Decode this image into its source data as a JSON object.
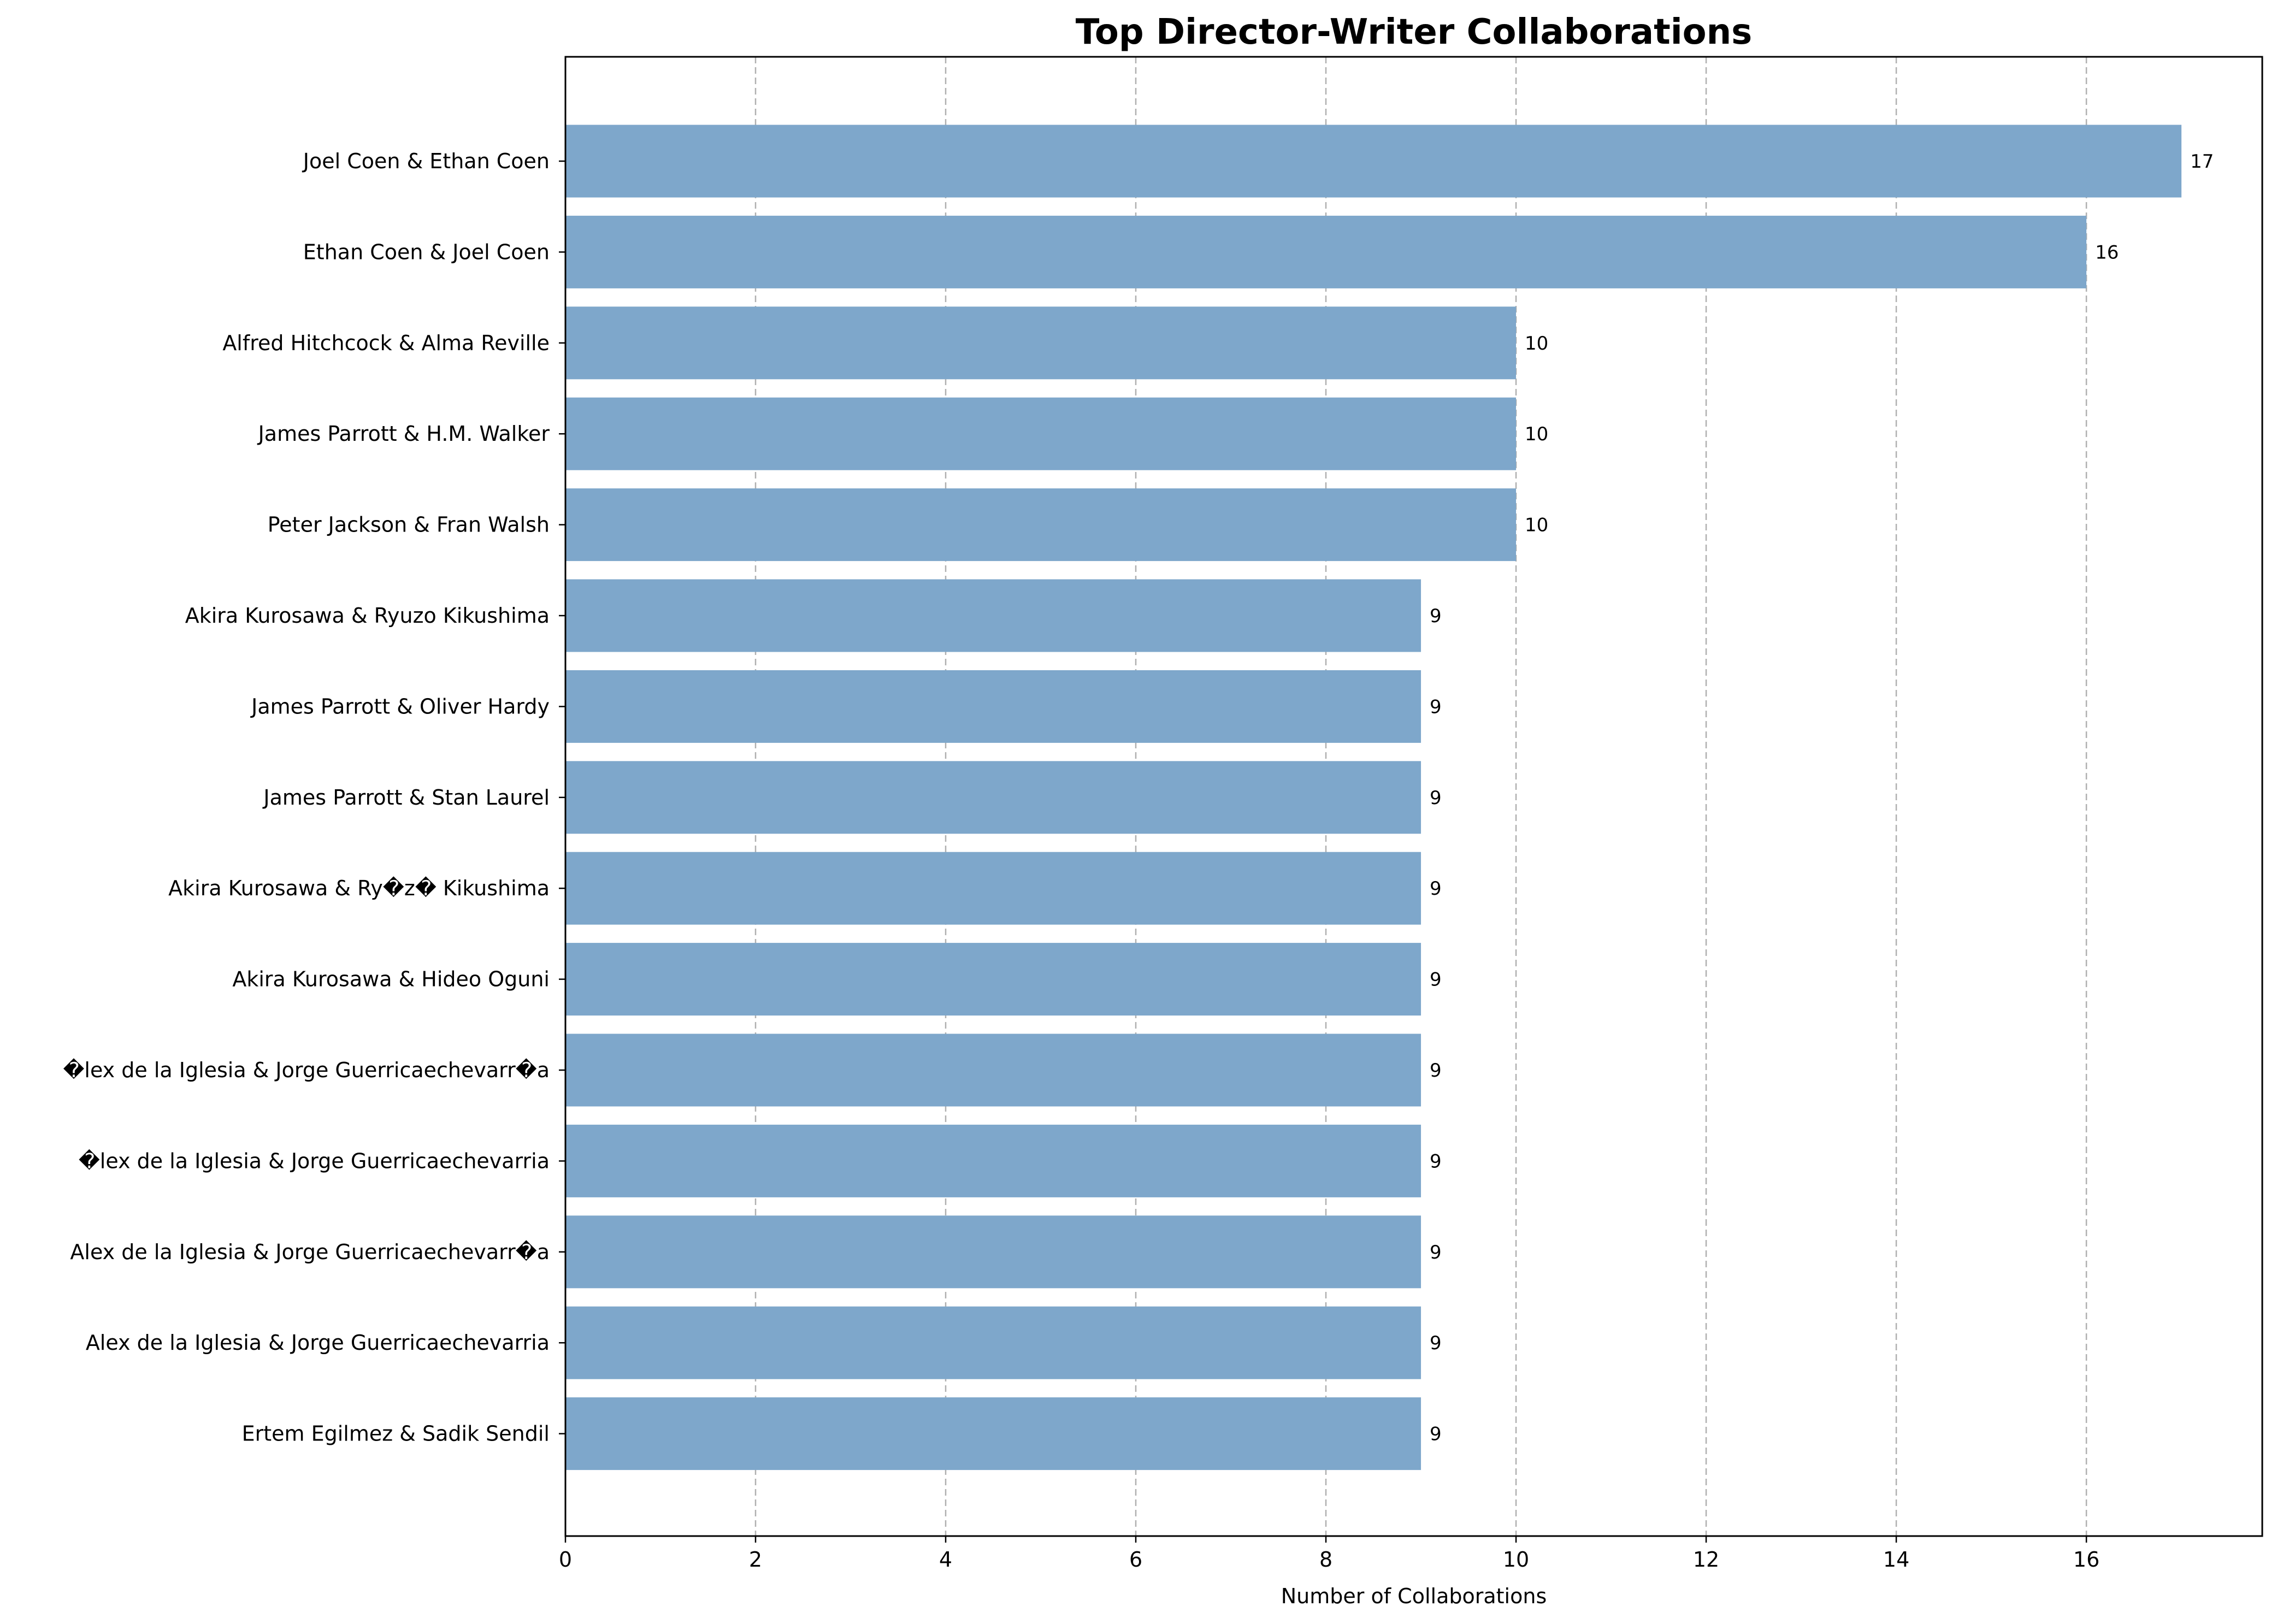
{
  "chart_data": {
    "type": "bar",
    "orientation": "horizontal",
    "title": "Top Director-Writer Collaborations",
    "xlabel": "Number of Collaborations",
    "ylabel": "",
    "xlim": [
      0,
      17.85
    ],
    "xticks": [
      0,
      2,
      4,
      6,
      8,
      10,
      12,
      14,
      16
    ],
    "grid": "x-dashed",
    "bar_color": "#7ea7cb",
    "categories": [
      "Joel Coen & Ethan Coen",
      "Ethan Coen & Joel Coen",
      "Alfred Hitchcock & Alma Reville",
      "James Parrott & H.M. Walker",
      "Peter Jackson & Fran Walsh",
      "Akira Kurosawa & Ryuzo Kikushima",
      "James Parrott & Oliver Hardy",
      "James Parrott & Stan Laurel",
      "Akira Kurosawa & Ry�z� Kikushima",
      "Akira Kurosawa & Hideo Oguni",
      "�lex de la Iglesia & Jorge Guerricaechevarr�a",
      "�lex de la Iglesia & Jorge Guerricaechevarria",
      "Alex de la Iglesia & Jorge Guerricaechevarr�a",
      "Alex de la Iglesia & Jorge Guerricaechevarria",
      "Ertem Egilmez & Sadik Sendil"
    ],
    "values": [
      17,
      16,
      10,
      10,
      10,
      9,
      9,
      9,
      9,
      9,
      9,
      9,
      9,
      9,
      9
    ]
  }
}
